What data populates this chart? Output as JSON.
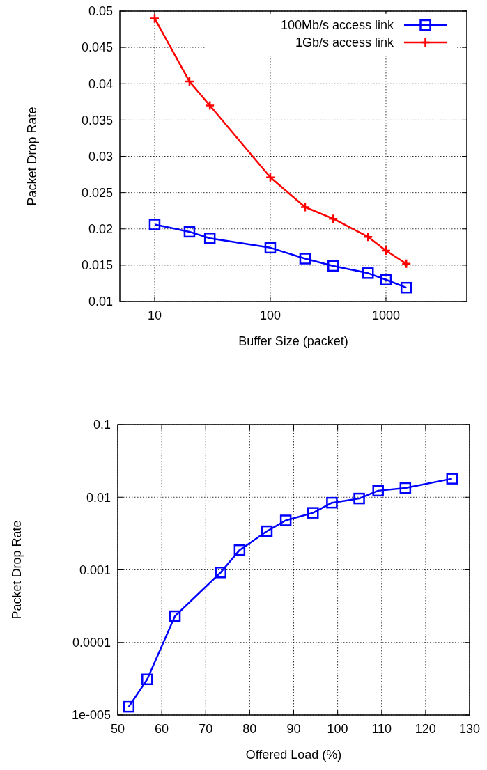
{
  "chart_data": [
    {
      "type": "line",
      "xlabel": "Buffer Size (packet)",
      "ylabel": "Packet Drop Rate",
      "log": "x",
      "grid": true,
      "legend": "top right",
      "xlim": [
        5,
        5000
      ],
      "xticks": [
        10,
        100,
        1000
      ],
      "ylim": [
        0.01,
        0.05
      ],
      "yticks": [
        0.01,
        0.015,
        0.02,
        0.025,
        0.03,
        0.035,
        0.04,
        0.045,
        0.05
      ],
      "line_style": "solid",
      "series": [
        {
          "name": "100Mb/s access link",
          "color": "#0000ff",
          "marker": "square",
          "x": [
            10,
            20,
            30,
            100,
            200,
            350,
            700,
            1000,
            1500
          ],
          "values": [
            0.0206,
            0.0196,
            0.0187,
            0.0174,
            0.0159,
            0.0149,
            0.0139,
            0.013,
            0.0119
          ]
        },
        {
          "name": "1Gb/s access link",
          "color": "#ff0000",
          "marker": "cross",
          "x": [
            10,
            20,
            30,
            100,
            200,
            350,
            700,
            1000,
            1500
          ],
          "values": [
            0.049,
            0.0403,
            0.037,
            0.0271,
            0.023,
            0.0214,
            0.0189,
            0.017,
            0.0152
          ]
        }
      ]
    },
    {
      "type": "line",
      "xlabel": "Offered Load (%)",
      "ylabel": "Packet Drop Rate",
      "log": true,
      "grid": true,
      "xlim": [
        50,
        130
      ],
      "xticks": [
        50,
        60,
        70,
        80,
        90,
        100,
        110,
        120,
        130
      ],
      "ylim": [
        1e-05,
        0.1
      ],
      "yticks": [
        {
          "value": 1e-05,
          "label": "1e-005"
        },
        {
          "value": 0.0001,
          "label": "0.0001"
        },
        {
          "value": 0.001,
          "label": "0.001"
        },
        {
          "value": 0.01,
          "label": "0.01"
        },
        {
          "value": 0.1,
          "label": "0.1"
        }
      ],
      "line_style": "solid",
      "series": [
        {
          "color": "#0000ff",
          "marker": "square",
          "x": [
            52.5,
            56.7,
            63.0,
            73.4,
            77.7,
            83.9,
            88.2,
            94.4,
            98.7,
            104.9,
            109.2,
            115.4,
            126.0
          ],
          "values": [
            1.3e-05,
            3.1e-05,
            0.00023,
            0.00092,
            0.00187,
            0.0034,
            0.0048,
            0.0061,
            0.0084,
            0.0096,
            0.0123,
            0.0134,
            0.018
          ]
        }
      ]
    }
  ]
}
